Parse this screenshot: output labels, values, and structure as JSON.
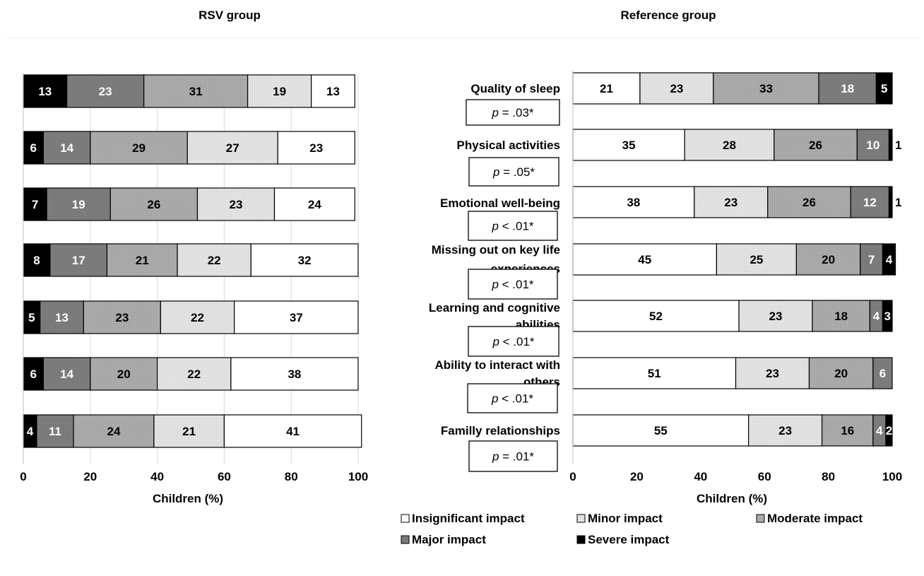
{
  "chart_data": [
    {
      "type": "bar",
      "stacked": true,
      "orientation": "horizontal",
      "title": "RSV group",
      "xlabel": "Children  (%)",
      "ylabel": "",
      "xlim": [
        0,
        100
      ],
      "xticks": [
        "0",
        "20",
        "40",
        "60",
        "80",
        "100"
      ],
      "grid": true,
      "category_order": "top-to-bottom",
      "series_order": [
        "Severe impact",
        "Major impact",
        "Moderate impact",
        "Minor impact",
        "Insignificant impact"
      ],
      "rows": [
        [
          13,
          23,
          31,
          19,
          13
        ],
        [
          6,
          14,
          29,
          27,
          23
        ],
        [
          7,
          19,
          26,
          23,
          24
        ],
        [
          8,
          17,
          21,
          22,
          32
        ],
        [
          5,
          13,
          23,
          22,
          37
        ],
        [
          6,
          14,
          20,
          22,
          38
        ],
        [
          4,
          11,
          24,
          21,
          41
        ]
      ]
    },
    {
      "type": "bar",
      "stacked": true,
      "orientation": "horizontal",
      "title": "Reference group",
      "xlabel": "Children (%)",
      "ylabel": "",
      "xlim": [
        0,
        100
      ],
      "xticks": [
        "0",
        "20",
        "40",
        "60",
        "80",
        "100"
      ],
      "grid": false,
      "category_order": "top-to-bottom",
      "categories": [
        "Quality of sleep",
        "Physical activities",
        "Emotional well-being",
        "Missing out on key life experiences",
        "Learning and cognitive abilities",
        "Ability to interact with others",
        "Familly relationships"
      ],
      "p_values": [
        "p = .03*",
        "p = .05*",
        "p < .01*",
        "p < .01*",
        "p < .01*",
        "p < .01*",
        "p = .01*"
      ],
      "series_order": [
        "Insignificant impact",
        "Minor impact",
        "Moderate impact",
        "Major impact",
        "Severe impact"
      ],
      "rows": [
        [
          21,
          23,
          33,
          18,
          5
        ],
        [
          35,
          28,
          26,
          10,
          1
        ],
        [
          38,
          23,
          26,
          12,
          1
        ],
        [
          45,
          25,
          20,
          7,
          4
        ],
        [
          52,
          23,
          18,
          4,
          3
        ],
        [
          51,
          23,
          20,
          6,
          0
        ],
        [
          55,
          23,
          16,
          4,
          2
        ]
      ]
    }
  ],
  "legend": {
    "placement": "bottom",
    "items": [
      {
        "label": "Insignificant impact",
        "color": "#ffffff"
      },
      {
        "label": "Minor impact",
        "color": "#dedede"
      },
      {
        "label": "Moderate impact",
        "color": "#a9a9a9"
      },
      {
        "label": "Major impact",
        "color": "#7b7b7b"
      },
      {
        "label": "Severe impact",
        "color": "#000000"
      }
    ]
  },
  "series_colors": {
    "Insignificant impact": "#ffffff",
    "Minor impact": "#dedede",
    "Moderate impact": "#a9a9a9",
    "Major impact": "#7b7b7b",
    "Severe impact": "#000000"
  },
  "label_colors": {
    "Insignificant impact": "#000000",
    "Minor impact": "#000000",
    "Moderate impact": "#000000",
    "Major impact": "#ffffff",
    "Severe impact": "#ffffff"
  }
}
